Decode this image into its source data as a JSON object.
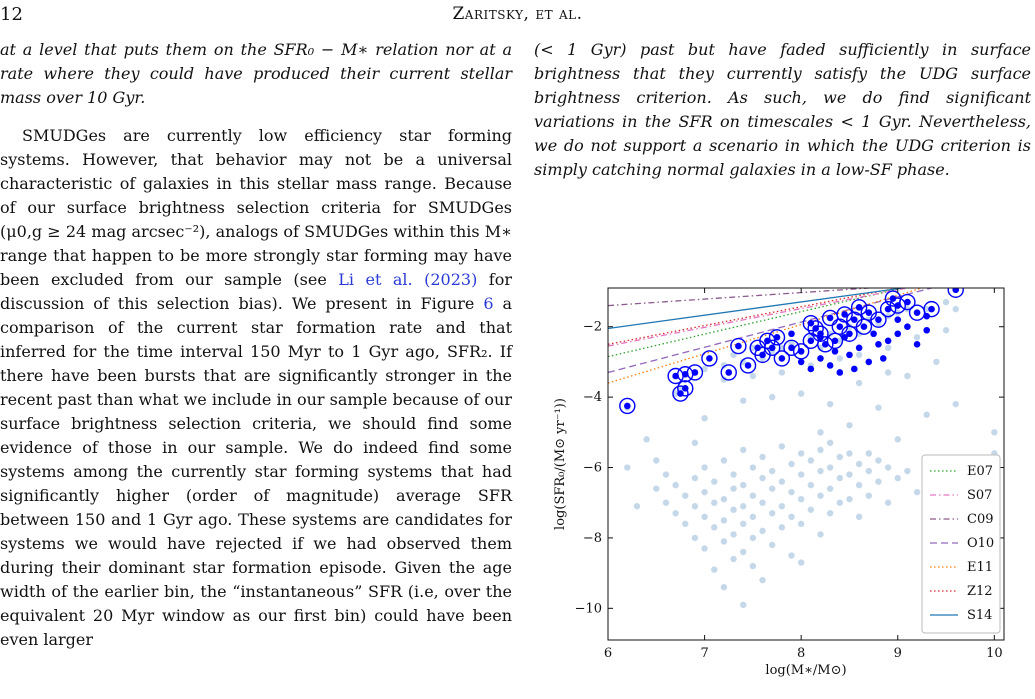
{
  "header": {
    "page_number": "12",
    "running_head": "Zaritsky, et al."
  },
  "left_column": {
    "intro_lines": "at a level that puts them on the SFR₀ − M∗ relation nor at a rate where they could have produced their current stellar mass over 10 Gyr.",
    "para_part1": "SMUDGes are currently low efficiency star forming systems. However, that behavior may not be a universal characteristic of galaxies in this stellar mass range. Because of our surface brightness selection criteria for SMUDGes (μ0,g ≥ 24 mag arcsec⁻²), analogs of SMUDGes within this M∗ range that happen to be more strongly star forming may have been excluded from our sample (see ",
    "citation": "Li et al. (2023)",
    "para_part2": " for discussion of this selection bias). We present in Figure ",
    "figure_ref": "6",
    "para_part3": " a comparison of the current star formation rate and that inferred for the time interval 150 Myr to 1 Gyr ago, SFR₂. If there have been bursts that are significantly stronger in the recent past than what we include in our sample because of our surface brightness selection criteria, we should find some evidence of those in our sample. We do indeed find some systems among the currently star forming systems that had significantly higher (order of magnitude) average SFR between 150 and 1 Gyr ago. These systems are candidates for systems we would have rejected if we had observed them during their dominant star formation episode. Given the age width of the earlier bin, the “instantaneous” SFR (i.e, over the equivalent 20 Myr window as our first bin) could have been even larger"
  },
  "right_column": {
    "text": "(< 1 Gyr) past but have faded sufficiently in surface brightness that they currently satisfy the UDG surface brightness criterion. As such, we do find significant variations in the SFR on timescales < 1 Gyr. Nevertheless, we do not support a scenario in which the UDG criterion is simply catching normal galaxies in a low-SF phase."
  },
  "chart_data": {
    "type": "scatter",
    "xlabel": "log(M∗/M⊙)",
    "ylabel": "log(SFR₀/(M⊙ yr⁻¹))",
    "xlim": [
      6,
      10.1
    ],
    "ylim": [
      -10.9,
      -0.9
    ],
    "xticks": [
      "6",
      "7",
      "8",
      "9",
      "10"
    ],
    "yticks": [
      "−2",
      "−4",
      "−6",
      "−8",
      "−10"
    ],
    "ytick_values": [
      -2,
      -4,
      -6,
      -8,
      -10
    ],
    "xtick_values": [
      6,
      7,
      8,
      9,
      10
    ],
    "grid": false,
    "legend_placement": "bottom-right",
    "colors": {
      "faint_points": "#7fa8d1",
      "sf_points": "#0000ff",
      "circle_outline": "#0000ff"
    },
    "relations": [
      {
        "name": "E07",
        "style": "dotted",
        "color": "#2ca02c",
        "points": [
          [
            6,
            -2.85
          ],
          [
            9.05,
            -0.9
          ]
        ]
      },
      {
        "name": "S07",
        "style": "dashdot",
        "color": "#e377c2",
        "points": [
          [
            6,
            -2.55
          ],
          [
            9.1,
            -0.9
          ]
        ]
      },
      {
        "name": "C09",
        "style": "dashdot",
        "color": "#8c5a8c",
        "points": [
          [
            6,
            -1.4
          ],
          [
            8.7,
            -0.9
          ]
        ]
      },
      {
        "name": "O10",
        "style": "dashed",
        "color": "#9467bd",
        "points": [
          [
            6,
            -3.3
          ],
          [
            9.35,
            -0.9
          ]
        ]
      },
      {
        "name": "E11",
        "style": "dotted",
        "color": "#ff7f0e",
        "points": [
          [
            6,
            -3.6
          ],
          [
            9.25,
            -0.9
          ]
        ]
      },
      {
        "name": "Z12",
        "style": "dotted",
        "color": "#d62728",
        "points": [
          [
            6,
            -2.5
          ],
          [
            9.0,
            -0.9
          ]
        ]
      },
      {
        "name": "S14",
        "style": "solid",
        "color": "#1f77b4",
        "points": [
          [
            6,
            -2.05
          ],
          [
            9.05,
            -0.9
          ]
        ]
      }
    ],
    "series": [
      {
        "name": "",
        "description_role": "all galaxies (faint)",
        "points": [
          [
            6.2,
            -4.3
          ],
          [
            6.7,
            -3.9
          ],
          [
            6.75,
            -3.8
          ],
          [
            7.0,
            -3.2
          ],
          [
            7.2,
            -3.1
          ],
          [
            7.3,
            -2.8
          ],
          [
            7.4,
            -3.0
          ],
          [
            7.5,
            -2.6
          ],
          [
            7.6,
            -2.9
          ],
          [
            7.7,
            -2.7
          ],
          [
            7.8,
            -2.6
          ],
          [
            7.9,
            -2.5
          ],
          [
            8.0,
            -2.7
          ],
          [
            8.1,
            -2.3
          ],
          [
            8.2,
            -2.6
          ],
          [
            8.3,
            -2.2
          ],
          [
            8.4,
            -2.4
          ],
          [
            8.5,
            -2.0
          ],
          [
            8.6,
            -2.2
          ],
          [
            8.7,
            -1.8
          ],
          [
            8.8,
            -1.9
          ],
          [
            8.9,
            -1.7
          ],
          [
            9.0,
            -1.6
          ],
          [
            9.1,
            -1.5
          ],
          [
            9.3,
            -1.5
          ],
          [
            9.5,
            -1.3
          ],
          [
            7.2,
            -3.5
          ],
          [
            7.5,
            -3.4
          ],
          [
            7.8,
            -3.3
          ],
          [
            8.1,
            -3.1
          ],
          [
            8.4,
            -2.9
          ],
          [
            8.6,
            -2.8
          ],
          [
            8.9,
            -2.6
          ],
          [
            9.2,
            -2.3
          ],
          [
            9.5,
            -2.1
          ],
          [
            9.6,
            -1.5
          ],
          [
            7.0,
            -4.6
          ],
          [
            7.4,
            -4.1
          ],
          [
            7.7,
            -4.0
          ],
          [
            8.0,
            -3.9
          ],
          [
            8.3,
            -4.2
          ],
          [
            8.6,
            -3.6
          ],
          [
            8.9,
            -3.3
          ],
          [
            9.1,
            -3.4
          ],
          [
            9.4,
            -3.0
          ],
          [
            8.8,
            -4.3
          ],
          [
            8.5,
            -4.8
          ],
          [
            8.2,
            -5.0
          ],
          [
            9.0,
            -5.2
          ],
          [
            8.7,
            -5.6
          ],
          [
            9.3,
            -4.5
          ],
          [
            10.0,
            -5.0
          ],
          [
            10.0,
            -5.6
          ],
          [
            9.6,
            -4.2
          ],
          [
            9.4,
            -5.8
          ],
          [
            6.4,
            -5.2
          ],
          [
            6.5,
            -5.8
          ],
          [
            6.6,
            -6.2
          ],
          [
            6.5,
            -6.6
          ],
          [
            6.6,
            -7.0
          ],
          [
            6.7,
            -6.5
          ],
          [
            6.7,
            -7.3
          ],
          [
            6.8,
            -6.8
          ],
          [
            6.8,
            -7.6
          ],
          [
            6.9,
            -6.3
          ],
          [
            6.9,
            -7.1
          ],
          [
            6.9,
            -8.0
          ],
          [
            7.0,
            -6.0
          ],
          [
            7.0,
            -6.7
          ],
          [
            7.0,
            -7.4
          ],
          [
            7.0,
            -8.3
          ],
          [
            7.1,
            -6.4
          ],
          [
            7.1,
            -7.0
          ],
          [
            7.1,
            -7.7
          ],
          [
            7.2,
            -5.8
          ],
          [
            7.2,
            -6.9
          ],
          [
            7.2,
            -7.5
          ],
          [
            7.2,
            -8.1
          ],
          [
            7.3,
            -6.2
          ],
          [
            7.3,
            -6.6
          ],
          [
            7.3,
            -7.2
          ],
          [
            7.3,
            -7.9
          ],
          [
            7.3,
            -8.6
          ],
          [
            7.4,
            -5.5
          ],
          [
            7.4,
            -6.5
          ],
          [
            7.4,
            -7.1
          ],
          [
            7.4,
            -7.6
          ],
          [
            7.4,
            -8.4
          ],
          [
            7.5,
            -6.0
          ],
          [
            7.5,
            -6.8
          ],
          [
            7.5,
            -7.4
          ],
          [
            7.5,
            -8.0
          ],
          [
            7.5,
            -8.8
          ],
          [
            7.6,
            -5.7
          ],
          [
            7.6,
            -6.3
          ],
          [
            7.6,
            -7.0
          ],
          [
            7.6,
            -7.8
          ],
          [
            7.7,
            -6.1
          ],
          [
            7.7,
            -6.6
          ],
          [
            7.7,
            -7.3
          ],
          [
            7.7,
            -8.2
          ],
          [
            7.8,
            -5.4
          ],
          [
            7.8,
            -6.4
          ],
          [
            7.8,
            -7.1
          ],
          [
            7.8,
            -7.7
          ],
          [
            7.9,
            -5.9
          ],
          [
            7.9,
            -6.7
          ],
          [
            7.9,
            -7.4
          ],
          [
            7.9,
            -8.5
          ],
          [
            8.0,
            -5.6
          ],
          [
            8.0,
            -6.2
          ],
          [
            8.0,
            -6.9
          ],
          [
            8.0,
            -7.6
          ],
          [
            8.1,
            -5.8
          ],
          [
            8.1,
            -6.5
          ],
          [
            8.1,
            -7.2
          ],
          [
            8.2,
            -5.5
          ],
          [
            8.2,
            -6.1
          ],
          [
            8.2,
            -6.8
          ],
          [
            8.2,
            -7.9
          ],
          [
            8.3,
            -5.3
          ],
          [
            8.3,
            -6.0
          ],
          [
            8.3,
            -6.6
          ],
          [
            8.3,
            -7.3
          ],
          [
            8.4,
            -5.7
          ],
          [
            8.4,
            -6.3
          ],
          [
            8.4,
            -7.0
          ],
          [
            8.5,
            -5.6
          ],
          [
            8.5,
            -6.2
          ],
          [
            8.5,
            -6.9
          ],
          [
            8.6,
            -5.9
          ],
          [
            8.6,
            -6.5
          ],
          [
            8.6,
            -7.4
          ],
          [
            8.7,
            -6.1
          ],
          [
            8.7,
            -6.8
          ],
          [
            8.8,
            -5.8
          ],
          [
            8.8,
            -6.4
          ],
          [
            8.9,
            -6.0
          ],
          [
            8.9,
            -7.0
          ],
          [
            9.0,
            -6.3
          ],
          [
            9.1,
            -6.1
          ],
          [
            9.2,
            -6.7
          ],
          [
            9.3,
            -5.9
          ],
          [
            7.1,
            -8.9
          ],
          [
            7.2,
            -9.4
          ],
          [
            7.6,
            -9.2
          ],
          [
            7.4,
            -9.9
          ],
          [
            8.0,
            -8.7
          ],
          [
            6.3,
            -7.1
          ],
          [
            6.2,
            -6.0
          ],
          [
            6.9,
            -5.3
          ]
        ]
      },
      {
        "name": "",
        "description_role": "star-forming (filled blue)",
        "points": [
          [
            8.0,
            -3.0
          ],
          [
            8.1,
            -3.2
          ],
          [
            8.2,
            -2.9
          ],
          [
            8.3,
            -3.1
          ],
          [
            8.35,
            -2.7
          ],
          [
            8.4,
            -3.3
          ],
          [
            8.5,
            -2.8
          ],
          [
            8.55,
            -3.2
          ],
          [
            8.6,
            -2.6
          ],
          [
            8.7,
            -3.0
          ],
          [
            8.8,
            -2.5
          ],
          [
            8.85,
            -2.9
          ],
          [
            8.9,
            -2.4
          ],
          [
            9.0,
            -2.2
          ],
          [
            9.1,
            -2.0
          ],
          [
            9.2,
            -2.5
          ],
          [
            9.3,
            -2.1
          ],
          [
            7.9,
            -2.2
          ],
          [
            8.2,
            -2.3
          ],
          [
            8.45,
            -2.3
          ],
          [
            8.75,
            -2.2
          ],
          [
            9.0,
            -1.8
          ],
          [
            9.3,
            -1.7
          ]
        ]
      },
      {
        "name": "",
        "description_role": "circled (high past SFR)",
        "points": [
          [
            6.2,
            -4.25
          ],
          [
            6.75,
            -3.9
          ],
          [
            6.8,
            -3.75
          ],
          [
            6.7,
            -3.4
          ],
          [
            6.8,
            -3.35
          ],
          [
            6.9,
            -3.3
          ],
          [
            7.05,
            -2.9
          ],
          [
            7.25,
            -3.3
          ],
          [
            7.45,
            -3.1
          ],
          [
            7.55,
            -2.6
          ],
          [
            7.6,
            -2.8
          ],
          [
            7.65,
            -2.4
          ],
          [
            7.7,
            -2.6
          ],
          [
            7.8,
            -2.9
          ],
          [
            7.9,
            -2.6
          ],
          [
            8.0,
            -2.7
          ],
          [
            8.1,
            -2.4
          ],
          [
            8.2,
            -2.2
          ],
          [
            8.25,
            -2.5
          ],
          [
            8.35,
            -2.4
          ],
          [
            8.4,
            -2.0
          ],
          [
            8.5,
            -2.2
          ],
          [
            8.55,
            -1.8
          ],
          [
            8.65,
            -2.0
          ],
          [
            8.7,
            -1.6
          ],
          [
            8.8,
            -1.8
          ],
          [
            8.9,
            -1.5
          ],
          [
            9.0,
            -1.4
          ],
          [
            9.1,
            -1.3
          ],
          [
            9.2,
            -1.6
          ],
          [
            9.35,
            -1.5
          ],
          [
            9.6,
            -0.95
          ],
          [
            8.1,
            -1.9
          ],
          [
            8.3,
            -1.75
          ],
          [
            8.6,
            -1.45
          ],
          [
            8.95,
            -1.2
          ],
          [
            7.35,
            -2.55
          ],
          [
            7.75,
            -2.3
          ],
          [
            8.15,
            -2.05
          ],
          [
            8.45,
            -1.65
          ]
        ]
      }
    ]
  }
}
